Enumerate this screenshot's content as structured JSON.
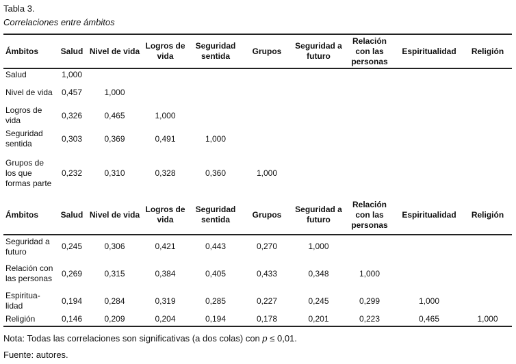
{
  "table_number": "Tabla 3.",
  "table_title": "Correlaciones entre ámbitos",
  "headers": [
    "Ámbitos",
    "Salud",
    "Nivel de vida",
    "Logros de vida",
    "Seguridad sentida",
    "Grupos",
    "Seguridad a futuro",
    "Relación con las personas",
    "Espiritualidad",
    "Religión"
  ],
  "rows_part1": [
    {
      "label": "Salud",
      "values": [
        "1,000"
      ]
    },
    {
      "label": "Nivel de vida",
      "values": [
        "0,457",
        "1,000"
      ]
    },
    {
      "label": "Logros de vida",
      "values": [
        "0,326",
        "0,465",
        "1,000"
      ]
    },
    {
      "label": "Seguridad sentida",
      "values": [
        "0,303",
        "0,369",
        "0,491",
        "1,000"
      ]
    },
    {
      "label": "Grupos de los que formas parte",
      "values": [
        "0,232",
        "0,310",
        "0,328",
        "0,360",
        "1,000"
      ]
    }
  ],
  "rows_part2": [
    {
      "label": "Seguridad a futuro",
      "values": [
        "0,245",
        "0,306",
        "0,421",
        "0,443",
        "0,270",
        "1,000"
      ]
    },
    {
      "label": "Relación con las personas",
      "values": [
        "0,269",
        "0,315",
        "0,384",
        "0,405",
        "0,433",
        "0,348",
        "1,000"
      ]
    },
    {
      "label": "Espiritua-lidad",
      "values": [
        "0,194",
        "0,284",
        "0,319",
        "0,285",
        "0,227",
        "0,245",
        "0,299",
        "1,000"
      ]
    },
    {
      "label": "Religión",
      "values": [
        "0,146",
        "0,209",
        "0,204",
        "0,194",
        "0,178",
        "0,201",
        "0,223",
        "0,465",
        "1,000"
      ]
    }
  ],
  "note_prefix": "Nota: Todas las correlaciones son significativas (a dos colas) con ",
  "note_p": "p",
  "note_suffix": " ≤ 0,01.",
  "source": "Fuente: autores."
}
